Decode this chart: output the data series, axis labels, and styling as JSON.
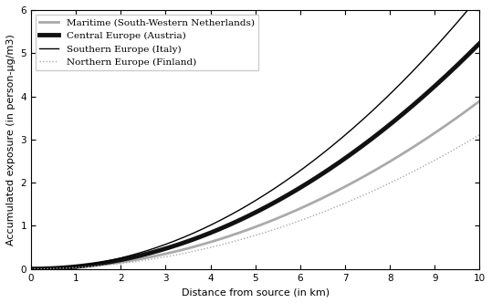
{
  "title": "",
  "xlabel": "Distance from source (in km)",
  "ylabel": "Accumulated exposure (in person-μg/m3)",
  "xlim": [
    0,
    10
  ],
  "ylim": [
    0,
    6
  ],
  "xticks": [
    0,
    1,
    2,
    3,
    4,
    5,
    6,
    7,
    8,
    9,
    10
  ],
  "yticks": [
    0,
    1,
    2,
    3,
    4,
    5,
    6
  ],
  "series": [
    {
      "label": "Maritime (South-Western Netherlands)",
      "color": "#aaaaaa",
      "linewidth": 2.0,
      "linestyle": "solid",
      "coeff": 0.0389
    },
    {
      "label": "Central Europe (Austria)",
      "color": "#111111",
      "linewidth": 3.5,
      "linestyle": "solid",
      "coeff": 0.0523
    },
    {
      "label": "Southern Europe (Italy)",
      "color": "#000000",
      "linewidth": 1.0,
      "linestyle": "solid",
      "coeff": 0.0633
    },
    {
      "label": "Northern Europe (Finland)",
      "color": "#aaaaaa",
      "linewidth": 1.0,
      "linestyle": "dotted",
      "coeff": 0.0311
    }
  ],
  "legend_order": [
    0,
    1,
    2,
    3
  ],
  "background_color": "#ffffff",
  "fontsize_labels": 8,
  "fontsize_ticks": 7.5,
  "fontsize_legend": 7.5
}
